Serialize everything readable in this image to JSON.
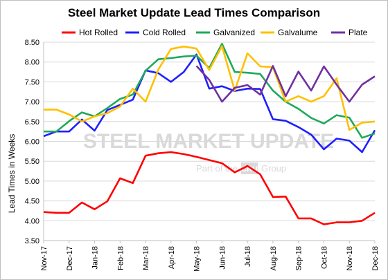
{
  "chart_data": {
    "type": "line",
    "title": "Steel Market Update Lead Times Comparison",
    "ylabel": "Lead Times in Weeks",
    "xlabel": "",
    "ylim": [
      3.5,
      8.5
    ],
    "y_ticks": [
      "3.50",
      "4.00",
      "4.50",
      "5.00",
      "5.50",
      "6.00",
      "6.50",
      "7.00",
      "7.50",
      "8.00",
      "8.50"
    ],
    "x_labels": [
      "Nov-17",
      "Dec-17",
      "Jan-18",
      "Feb-18",
      "Mar-18",
      "Apr-18",
      "May-18",
      "Jun-18",
      "Jul-18",
      "Aug-18",
      "Sep-18",
      "Oct-18",
      "Nov-18",
      "Dec-18"
    ],
    "points_per_label": 2,
    "grid": true,
    "legend": "top",
    "watermark": {
      "main": "STEEL MARKET UPDATE",
      "sub": "Part of the",
      "box": "CRU",
      "tail": "Group"
    },
    "series": [
      {
        "name": "Hot Rolled",
        "color": "#ff0000",
        "values": [
          4.22,
          4.2,
          4.2,
          4.46,
          4.29,
          4.49,
          5.07,
          4.95,
          5.64,
          5.7,
          5.73,
          5.68,
          5.61,
          5.53,
          5.45,
          5.22,
          5.38,
          5.17,
          4.6,
          4.61,
          4.06,
          4.06,
          3.91,
          3.96,
          3.96,
          4.0,
          4.2
        ]
      },
      {
        "name": "Cold Rolled",
        "color": "#1f1fff",
        "values": [
          6.13,
          6.25,
          6.25,
          6.55,
          6.27,
          6.79,
          6.92,
          7.05,
          7.79,
          7.72,
          7.5,
          7.75,
          8.19,
          7.33,
          7.39,
          7.27,
          7.33,
          7.32,
          6.56,
          6.52,
          6.36,
          6.17,
          5.8,
          6.07,
          6.02,
          5.73,
          6.28
        ]
      },
      {
        "name": "Galvanized",
        "color": "#1fa95a",
        "values": [
          6.25,
          6.25,
          6.51,
          6.73,
          6.63,
          6.84,
          7.07,
          7.18,
          7.78,
          8.07,
          8.1,
          8.14,
          8.16,
          7.85,
          8.46,
          7.75,
          7.73,
          7.7,
          7.28,
          7.0,
          6.82,
          6.59,
          6.45,
          6.66,
          6.6,
          6.09,
          6.2
        ]
      },
      {
        "name": "Galvalume",
        "color": "#ffc000",
        "values": [
          6.8,
          6.8,
          6.68,
          6.5,
          6.63,
          6.71,
          6.88,
          7.33,
          7.0,
          7.81,
          8.33,
          8.39,
          8.34,
          7.8,
          8.4,
          7.28,
          8.22,
          7.89,
          7.87,
          7.0,
          7.14,
          7.0,
          7.14,
          7.59,
          6.29,
          6.47,
          6.5
        ]
      },
      {
        "name": "Plate",
        "color": "#7030a0",
        "start_index": 12,
        "values": [
          7.9,
          7.55,
          7.0,
          7.35,
          7.42,
          7.18,
          7.9,
          7.14,
          7.76,
          7.28,
          7.89,
          7.43,
          7.0,
          7.43,
          7.64
        ]
      }
    ]
  }
}
